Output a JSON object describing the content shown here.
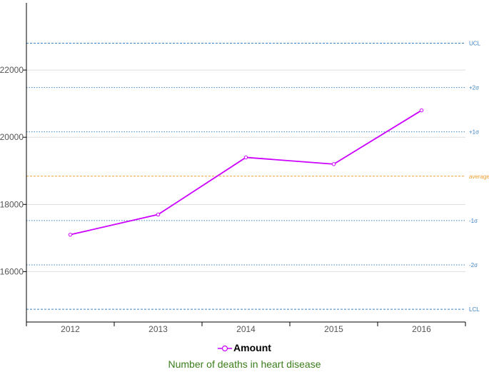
{
  "chart_data": {
    "type": "line",
    "title": "Number of deaths in heart disease",
    "categories": [
      "2012",
      "2013",
      "2014",
      "2015",
      "2016"
    ],
    "series": [
      {
        "name": "Amount",
        "values": [
          17100,
          17700,
          19400,
          19200,
          20800
        ],
        "color": "#cc00ff"
      }
    ],
    "ylim": [
      14500,
      24000
    ],
    "yticks": [
      16000,
      18000,
      20000,
      22000
    ],
    "grid": true,
    "control_lines": [
      {
        "label": "UCL",
        "value": 22800,
        "color": "#3b82c4",
        "style": "dashed"
      },
      {
        "label": "+2σ",
        "value": 21480,
        "color": "#3b82c4",
        "style": "dotted"
      },
      {
        "label": "+1σ",
        "value": 20160,
        "color": "#3b82c4",
        "style": "dotted"
      },
      {
        "label": "average",
        "value": 18840,
        "color": "#f0a030",
        "style": "dashed"
      },
      {
        "label": "-1σ",
        "value": 17520,
        "color": "#3b82c4",
        "style": "dotted"
      },
      {
        "label": "-2σ",
        "value": 16200,
        "color": "#3b82c4",
        "style": "dotted"
      },
      {
        "label": "LCL",
        "value": 14880,
        "color": "#3b82c4",
        "style": "dashed"
      }
    ],
    "legend_position": "bottom",
    "title_position": "bottom",
    "title_color": "#3a7d1a"
  }
}
